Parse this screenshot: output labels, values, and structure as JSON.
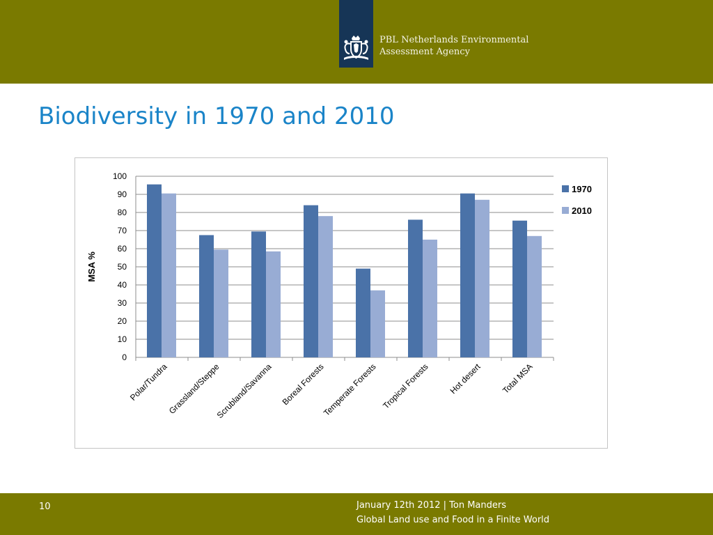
{
  "header": {
    "agency_line1": "PBL Netherlands Environmental",
    "agency_line2": "Assessment Agency",
    "band_color": "#7a7a00",
    "logo_color": "#163556",
    "logo_icon": "netherlands-coat-of-arms-icon"
  },
  "slide": {
    "title": "Biodiversity in 1970 and 2010",
    "title_color": "#1a84c8"
  },
  "chart_data": {
    "type": "bar",
    "title": "",
    "xlabel": "",
    "ylabel": "MSA %",
    "ylim": [
      0,
      100
    ],
    "yticks": [
      0,
      10,
      20,
      30,
      40,
      50,
      60,
      70,
      80,
      90,
      100
    ],
    "grid": true,
    "legend_position": "right",
    "categories": [
      "Polar/Tundra",
      "Grassland/Steppe",
      "Scrubland/Savanna",
      "Boreal Forests",
      "Temperate Forests",
      "Tropical Forests",
      "Hot desert",
      "Total MSA"
    ],
    "series": [
      {
        "name": "1970",
        "color": "#4a72a8",
        "values": [
          95.5,
          67.5,
          69.5,
          84,
          49,
          76,
          90.5,
          75.5
        ]
      },
      {
        "name": "2010",
        "color": "#98acd4",
        "values": [
          90.5,
          59.5,
          58.5,
          78,
          37,
          65,
          87,
          67
        ]
      }
    ]
  },
  "footer": {
    "page_number": "10",
    "date_author": "January 12th 2012 | Ton Manders",
    "subtitle": "Global Land use and Food in a Finite World"
  }
}
